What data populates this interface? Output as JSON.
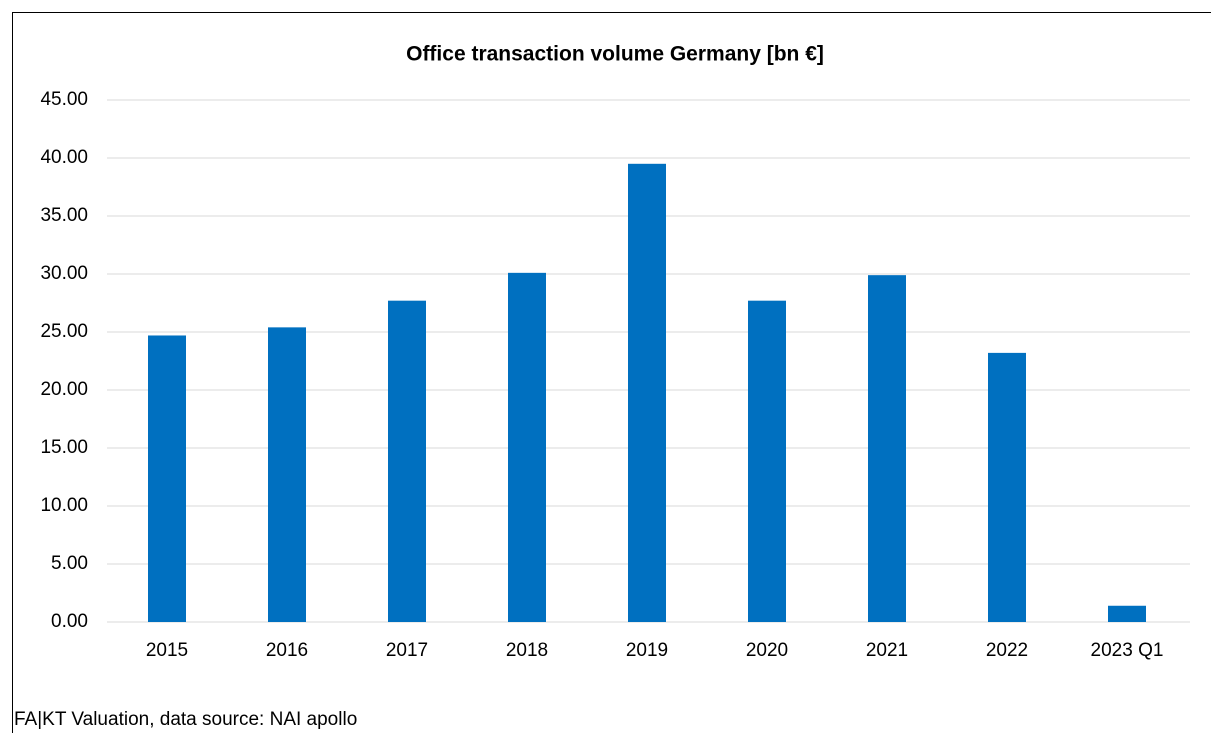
{
  "chart_data": {
    "type": "bar",
    "title": "Office transaction volume Germany [bn €]",
    "categories": [
      "2015",
      "2016",
      "2017",
      "2018",
      "2019",
      "2020",
      "2021",
      "2022",
      "2023 Q1"
    ],
    "values": [
      24.7,
      25.4,
      27.7,
      30.1,
      39.5,
      27.7,
      29.9,
      23.2,
      1.4
    ],
    "color": "#0070c0",
    "ylim": [
      0,
      45
    ],
    "yticks": [
      {
        "value": 0,
        "label": "0.00"
      },
      {
        "value": 5,
        "label": "5.00"
      },
      {
        "value": 10,
        "label": "10.00"
      },
      {
        "value": 15,
        "label": "15.00"
      },
      {
        "value": 20,
        "label": "20.00"
      },
      {
        "value": 25,
        "label": "25.00"
      },
      {
        "value": 30,
        "label": "30.00"
      },
      {
        "value": 35,
        "label": "35.00"
      },
      {
        "value": 40,
        "label": "40.00"
      },
      {
        "value": 45,
        "label": "45.00"
      }
    ],
    "grid": true,
    "source": "FA|KT Valuation, data source: NAI apollo"
  }
}
